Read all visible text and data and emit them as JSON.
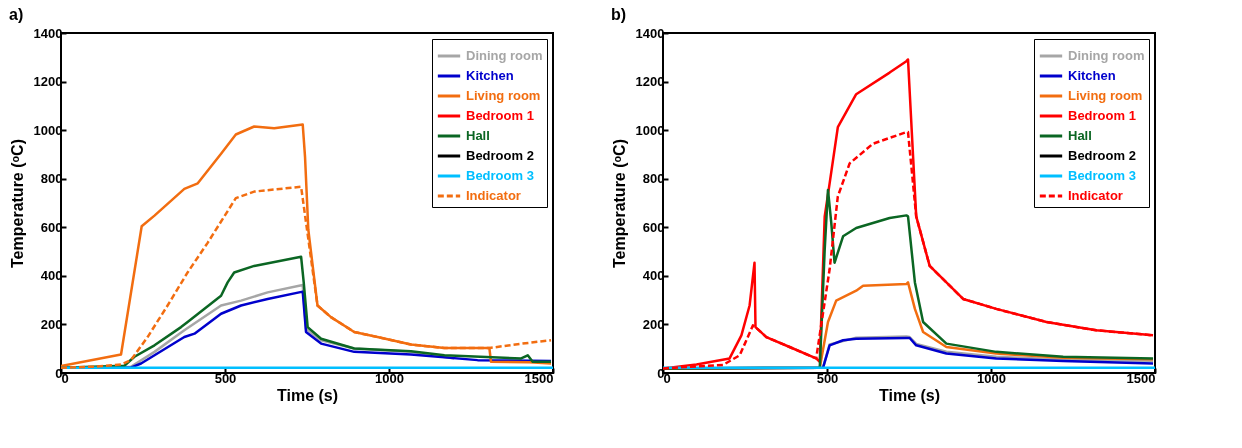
{
  "chart_data": [
    {
      "type": "line",
      "title": "a)",
      "xlabel": "Time (s)",
      "ylabel": "Temperature (ᵒC)",
      "xlim": [
        0,
        1500
      ],
      "ylim": [
        0,
        1400
      ],
      "xticks": [
        0,
        500,
        1000,
        1500
      ],
      "yticks": [
        0,
        200,
        400,
        600,
        800,
        1000,
        1200,
        1400
      ],
      "legend": "top right",
      "series": [
        {
          "name": "Dining room",
          "color": "#a6a6a6",
          "x": [
            0,
            213,
            285,
            376,
            488,
            549,
            630,
            737,
            747,
            793,
            894,
            1067,
            1199
          ],
          "values": [
            22,
            26,
            87,
            176,
            278,
            298,
            332,
            362,
            182,
            135,
            101,
            87,
            60
          ]
        },
        {
          "name": "Kitchen",
          "color": "#0000cc",
          "x": [
            0,
            213,
            244,
            376,
            407,
            488,
            549,
            630,
            737,
            747,
            793,
            894,
            1067,
            1270,
            1494
          ],
          "values": [
            22,
            22,
            39,
            148,
            162,
            244,
            278,
            305,
            335,
            169,
            121,
            87,
            76,
            53,
            49
          ]
        },
        {
          "name": "Living room",
          "color": "#f26d10",
          "x": [
            0,
            183,
            246,
            285,
            376,
            417,
            488,
            533,
            589,
            650,
            737,
            744,
            754,
            782,
            823,
            894,
            965,
            1067,
            1169,
            1306,
            1311,
            1428,
            1494
          ],
          "values": [
            29,
            76,
            604,
            648,
            758,
            781,
            903,
            982,
            1015,
            1008,
            1023,
            890,
            590,
            278,
            230,
            169,
            148,
            117,
            103,
            103,
            46,
            44,
            39
          ]
        },
        {
          "name": "Bedroom 1",
          "color": "#ff0000"
        },
        {
          "name": "Hall",
          "color": "#0b6623",
          "x": [
            0,
            193,
            224,
            285,
            366,
            386,
            488,
            508,
            528,
            589,
            732,
            740,
            752,
            793,
            894,
            1067,
            1169,
            1403,
            1423,
            1438,
            1494
          ],
          "values": [
            22,
            30,
            67,
            114,
            189,
            210,
            318,
            373,
            414,
            441,
            479,
            373,
            189,
            141,
            101,
            90,
            73,
            60,
            73,
            46,
            46
          ]
        },
        {
          "name": "Bedroom 2",
          "color": "#000000"
        },
        {
          "name": "Bedroom 3",
          "color": "#00bfff",
          "x": [
            0,
            1500
          ],
          "values": [
            22,
            22
          ]
        },
        {
          "name": "Indicator",
          "color": "#f26d10",
          "line_style": "dashed",
          "x": [
            0,
            102,
            183,
            213,
            264,
            325,
            386,
            447,
            498,
            533,
            589,
            732,
            782,
            823,
            894,
            965,
            1067,
            1169,
            1306,
            1400,
            1494
          ],
          "values": [
            22,
            26,
            35,
            53,
            148,
            278,
            414,
            536,
            645,
            720,
            747,
            767,
            278,
            230,
            169,
            148,
            117,
            103,
            103,
            120,
            135
          ]
        }
      ]
    },
    {
      "type": "line",
      "title": "b)",
      "xlabel": "Time (s)",
      "ylabel": "Temperature (ᵒC)",
      "xlim": [
        0,
        1500
      ],
      "ylim": [
        0,
        1400
      ],
      "xticks": [
        0,
        500,
        1000,
        1500
      ],
      "yticks": [
        0,
        200,
        400,
        600,
        800,
        1000,
        1200,
        1400
      ],
      "legend": "top right",
      "series": [
        {
          "name": "Dining room",
          "color": "#a6a6a6",
          "x": [
            0,
            488,
            508,
            589,
            742,
            752,
            772,
            864,
            1016,
            1220,
            1494
          ],
          "values": [
            19,
            22,
            118,
            145,
            150,
            148,
            120,
            88,
            67,
            55,
            50
          ]
        },
        {
          "name": "Kitchen",
          "color": "#0000cc",
          "x": [
            0,
            488,
            508,
            549,
            589,
            742,
            752,
            772,
            864,
            1016,
            1220,
            1494
          ],
          "values": [
            19,
            22,
            114,
            135,
            141,
            144,
            144,
            114,
            80,
            60,
            49,
            39
          ]
        },
        {
          "name": "Living room",
          "color": "#f26d10",
          "x": [
            0,
            478,
            503,
            528,
            589,
            610,
            742,
            747,
            768,
            793,
            864,
            1016,
            1220,
            1494
          ],
          "values": [
            19,
            22,
            210,
            298,
            339,
            359,
            366,
            373,
            264,
            169,
            107,
            80,
            63,
            57
          ]
        },
        {
          "name": "Bedroom 1",
          "color": "#ff0000",
          "x": [
            0,
            102,
            203,
            239,
            264,
            279,
            282,
            315,
            386,
            467,
            478,
            493,
            508,
            533,
            589,
            691,
            742,
            747,
            772,
            813,
            915,
            1016,
            1169,
            1321,
            1494
          ],
          "values": [
            19,
            35,
            60,
            155,
            278,
            454,
            189,
            148,
            107,
            60,
            46,
            645,
            781,
            1012,
            1148,
            1237,
            1284,
            1291,
            645,
            441,
            305,
            264,
            210,
            176,
            155
          ]
        },
        {
          "name": "Hall",
          "color": "#0b6623",
          "x": [
            0,
            478,
            493,
            503,
            513,
            523,
            549,
            589,
            691,
            742,
            747,
            768,
            793,
            864,
            1016,
            1220,
            1494
          ],
          "values": [
            19,
            22,
            509,
            754,
            618,
            454,
            563,
            597,
            638,
            649,
            645,
            373,
            210,
            121,
            87,
            67,
            60
          ]
        },
        {
          "name": "Bedroom 2",
          "color": "#000000"
        },
        {
          "name": "Bedroom 3",
          "color": "#00bfff",
          "x": [
            0,
            1500
          ],
          "values": [
            22,
            22
          ]
        },
        {
          "name": "Indicator",
          "color": "#ff0000",
          "line_style": "dashed",
          "x": [
            0,
            183,
            234,
            274,
            282,
            315,
            386,
            467,
            508,
            533,
            569,
            640,
            742,
            747,
            772,
            813,
            915,
            1016,
            1169,
            1321,
            1494
          ],
          "values": [
            19,
            33,
            73,
            196,
            189,
            148,
            107,
            60,
            427,
            727,
            863,
            944,
            992,
            992,
            645,
            441,
            305,
            264,
            210,
            176,
            155
          ]
        }
      ]
    }
  ]
}
